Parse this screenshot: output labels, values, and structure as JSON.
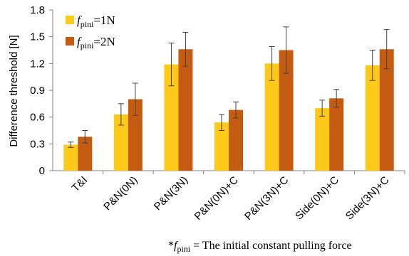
{
  "chart_data": {
    "type": "bar",
    "ylabel": "Difference threshold [N]",
    "ylim": [
      0,
      1.8
    ],
    "yticks": [
      "0",
      "0.3",
      "0.6",
      "0.9",
      "1.2",
      "1.5",
      "1.8"
    ],
    "grid": false,
    "legend_position": "top-left",
    "categories": [
      "T&I",
      "P&N(0N)",
      "P&N(3N)",
      "P&N(0N)+C",
      "P&N(3N)+C",
      "Side(0N)+C",
      "Side(3N)+C"
    ],
    "series": [
      {
        "name": "f_pini=1N",
        "legend": {
          "prefix": "f",
          "sub": "pini",
          "suffix": "=1N"
        },
        "color": "#FFC91A",
        "values": [
          0.29,
          0.63,
          1.19,
          0.54,
          1.2,
          0.7,
          1.18
        ],
        "errors": [
          0.03,
          0.12,
          0.24,
          0.09,
          0.19,
          0.09,
          0.17
        ]
      },
      {
        "name": "f_pini=2N",
        "legend": {
          "prefix": "f",
          "sub": "pini",
          "suffix": "=2N"
        },
        "color": "#C55A11",
        "values": [
          0.38,
          0.8,
          1.36,
          0.68,
          1.35,
          0.81,
          1.36
        ],
        "errors": [
          0.07,
          0.18,
          0.19,
          0.09,
          0.26,
          0.1,
          0.22
        ]
      }
    ],
    "note": {
      "prefix": "*",
      "f": "f",
      "sub": "pini",
      "text": " = The initial constant pulling force"
    }
  }
}
